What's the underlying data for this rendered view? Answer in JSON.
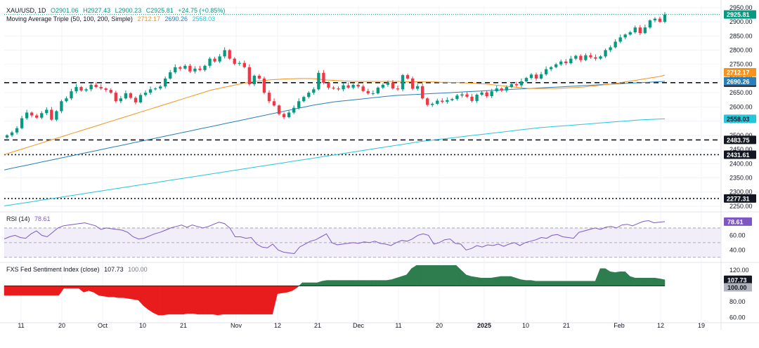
{
  "header": {
    "symbol": "XAU/USD, 1D",
    "ohlc": {
      "o": "O2901.06",
      "h": "H2927.43",
      "l": "L2900.23",
      "c": "C2925.81",
      "chg": "+24.75 (+0.85%)"
    },
    "ma_label": "Moving Average Triple (50, 100, 200, Simple)",
    "ma_values": [
      "2712.17",
      "2690.26",
      "2558.03"
    ]
  },
  "rsi_legend": {
    "label": "RSI (14)",
    "value": "78.61"
  },
  "sentiment_legend": {
    "label": "FXS Fed Sentiment Index (close)",
    "v1": "107.73",
    "v2": "100.00"
  },
  "colors": {
    "up": "#089981",
    "down": "#f23645",
    "ma50": "#f7931a",
    "ma100": "#2a7fb8",
    "ma200": "#26c6da",
    "rsi": "#7e57c2",
    "sent_pos": "#2e7d4f",
    "sent_neg": "#e81c1c"
  },
  "chart_data": [
    {
      "type": "candlestick",
      "title": "XAU/USD, 1D",
      "price_axis_ticks": [
        2950,
        2900,
        2850,
        2800,
        2750,
        2700,
        2650,
        2600,
        2550,
        2500,
        2450,
        2400,
        2350,
        2300,
        2250
      ],
      "price_axis_labels": [
        "2950.00",
        "2900.00",
        "2850.00",
        "2800.00",
        "2750.00",
        "2700.00",
        "2650.00",
        "2600.00",
        "2550.00",
        "2500.00",
        "2450.00",
        "2400.00",
        "2350.00",
        "2300.00",
        "2250.00"
      ],
      "ylim": [
        2235,
        2957
      ],
      "x_tick_labels": [
        "11",
        "20",
        "Oct",
        "10",
        "21",
        "Nov",
        "12",
        "21",
        "Dec",
        "11",
        "20",
        "2025",
        "10",
        "21",
        "Feb",
        "12",
        "19"
      ],
      "horizontal_levels": [
        {
          "value": 2685.51,
          "label": "2685.51",
          "style": "dashed"
        },
        {
          "value": 2483.75,
          "label": "2483.75",
          "style": "dashed"
        },
        {
          "value": 2431.61,
          "label": "2431.61",
          "style": "dotted"
        },
        {
          "value": 2277.31,
          "label": "2277.31",
          "style": "dotted"
        }
      ],
      "last_price": {
        "value": 2925.81,
        "label": "2925.81"
      },
      "series_labels": [
        {
          "name": "MA 50",
          "value": 2712.17,
          "label": "2712.17"
        },
        {
          "name": "MA 100",
          "value": 2690.26,
          "label": "2690.26"
        },
        {
          "name": "MA 200",
          "value": 2558.03,
          "label": "2558.03"
        }
      ],
      "candles_close": [
        2500,
        2510,
        2525,
        2560,
        2580,
        2570,
        2562,
        2578,
        2590,
        2555,
        2585,
        2620,
        2630,
        2655,
        2670,
        2658,
        2662,
        2678,
        2670,
        2665,
        2660,
        2650,
        2620,
        2630,
        2648,
        2632,
        2616,
        2642,
        2650,
        2662,
        2665,
        2672,
        2700,
        2722,
        2740,
        2735,
        2745,
        2725,
        2735,
        2730,
        2745,
        2770,
        2760,
        2778,
        2800,
        2770,
        2752,
        2755,
        2740,
        2680,
        2710,
        2700,
        2650,
        2620,
        2605,
        2575,
        2564,
        2580,
        2597,
        2620,
        2635,
        2650,
        2662,
        2720,
        2685,
        2668,
        2665,
        2662,
        2676,
        2668,
        2678,
        2672,
        2656,
        2648,
        2648,
        2668,
        2678,
        2686,
        2665,
        2662,
        2712,
        2700,
        2664,
        2673,
        2630,
        2607,
        2611,
        2622,
        2618,
        2624,
        2628,
        2640,
        2644,
        2636,
        2621,
        2643,
        2651,
        2638,
        2655,
        2665,
        2658,
        2670,
        2680,
        2676,
        2690,
        2702,
        2714,
        2700,
        2715,
        2733,
        2740,
        2750,
        2760,
        2754,
        2770,
        2780,
        2765,
        2782,
        2775,
        2770,
        2778,
        2800,
        2810,
        2830,
        2845,
        2855,
        2863,
        2880,
        2860,
        2880,
        2905,
        2911,
        2900,
        2925.81
      ],
      "ma50": [
        2432,
        2438,
        2444,
        2450,
        2456,
        2462,
        2468,
        2474,
        2480,
        2486,
        2492,
        2498,
        2504,
        2510,
        2516,
        2522,
        2528,
        2534,
        2540,
        2546,
        2552,
        2558,
        2564,
        2570,
        2576,
        2582,
        2588,
        2594,
        2600,
        2606,
        2612,
        2618,
        2624,
        2630,
        2636,
        2642,
        2648,
        2654,
        2660,
        2664,
        2668,
        2672,
        2676,
        2680,
        2684,
        2687,
        2690,
        2692,
        2694,
        2696,
        2697,
        2698,
        2699,
        2699,
        2700,
        2700,
        2700,
        2699,
        2697,
        2695,
        2694,
        2693,
        2692,
        2691,
        2690,
        2690,
        2690,
        2690,
        2690,
        2690,
        2690,
        2690,
        2690,
        2690,
        2689,
        2689,
        2689,
        2688,
        2688,
        2688,
        2687,
        2687,
        2686,
        2686,
        2685,
        2684,
        2683,
        2682,
        2681,
        2679,
        2677,
        2675,
        2673,
        2671,
        2669,
        2667,
        2665,
        2665,
        2665,
        2665,
        2665,
        2665,
        2666,
        2667,
        2668,
        2669,
        2670,
        2672,
        2674,
        2676,
        2678,
        2680,
        2683,
        2686,
        2689,
        2692,
        2695,
        2698,
        2701,
        2704,
        2707,
        2712.17
      ],
      "ma100": [
        2378,
        2382,
        2386,
        2390,
        2394,
        2398,
        2402,
        2406,
        2410,
        2414,
        2418,
        2422,
        2426,
        2430,
        2434,
        2438,
        2442,
        2446,
        2450,
        2454,
        2458,
        2462,
        2466,
        2470,
        2474,
        2478,
        2482,
        2486,
        2490,
        2494,
        2498,
        2502,
        2506,
        2510,
        2514,
        2518,
        2522,
        2526,
        2530,
        2534,
        2538,
        2542,
        2546,
        2550,
        2554,
        2558,
        2562,
        2566,
        2570,
        2574,
        2578,
        2582,
        2586,
        2590,
        2594,
        2598,
        2602,
        2606,
        2609,
        2612,
        2615,
        2618,
        2620,
        2622,
        2624,
        2626,
        2628,
        2630,
        2632,
        2634,
        2636,
        2638,
        2640,
        2641,
        2642,
        2643,
        2644,
        2645,
        2646,
        2647,
        2648,
        2649,
        2650,
        2651,
        2652,
        2653,
        2654,
        2655,
        2656,
        2657,
        2658,
        2659,
        2660,
        2661,
        2662,
        2663,
        2664,
        2665,
        2666,
        2667,
        2668,
        2669,
        2670,
        2671,
        2672,
        2673,
        2674,
        2675,
        2676,
        2677,
        2678,
        2679,
        2680,
        2681,
        2682,
        2683,
        2684,
        2685,
        2686,
        2687,
        2688,
        2689,
        2690.26
      ],
      "ma200": [
        2251,
        2255,
        2259,
        2263,
        2267,
        2271,
        2275,
        2279,
        2283,
        2287,
        2291,
        2295,
        2299,
        2303,
        2307,
        2311,
        2315,
        2319,
        2323,
        2327,
        2331,
        2335,
        2339,
        2343,
        2347,
        2351,
        2355,
        2359,
        2363,
        2367,
        2371,
        2375,
        2379,
        2383,
        2387,
        2391,
        2395,
        2399,
        2403,
        2407,
        2411,
        2415,
        2419,
        2423,
        2427,
        2431,
        2435,
        2439,
        2443,
        2447,
        2451,
        2455,
        2459,
        2463,
        2467,
        2471,
        2475,
        2479,
        2482,
        2485,
        2488,
        2491,
        2494,
        2497,
        2500,
        2503,
        2506,
        2509,
        2512,
        2515,
        2518,
        2521,
        2524,
        2527,
        2529,
        2531,
        2533,
        2535,
        2537,
        2539,
        2541,
        2543,
        2545,
        2547,
        2549,
        2551,
        2553,
        2555,
        2556,
        2557,
        2558.03
      ]
    },
    {
      "type": "line",
      "title": "RSI (14)",
      "ylim": [
        25,
        90
      ],
      "tick_labels": [
        "60.00",
        "40.00"
      ],
      "ticks": [
        60,
        40
      ],
      "bands": [
        70,
        50,
        30
      ],
      "last": {
        "value": 78.61,
        "label": "78.61"
      },
      "values": [
        55,
        58,
        60,
        57,
        56,
        62,
        66,
        60,
        58,
        64,
        70,
        73,
        74,
        75,
        76,
        77,
        75,
        73,
        68,
        70,
        69,
        68,
        67,
        64,
        58,
        55,
        56,
        59,
        62,
        64,
        67,
        70,
        72,
        74,
        71,
        74,
        72,
        70,
        72,
        75,
        78,
        76,
        70,
        58,
        58,
        56,
        57,
        48,
        44,
        43,
        48,
        40,
        37,
        36,
        35,
        44,
        48,
        52,
        54,
        58,
        62,
        50,
        47,
        48,
        49,
        50,
        49,
        51,
        50,
        52,
        49,
        48,
        46,
        50,
        53,
        52,
        55,
        60,
        62,
        60,
        48,
        50,
        54,
        55,
        49,
        48,
        40,
        42,
        46,
        44,
        47,
        46,
        48,
        45,
        48,
        50,
        46,
        50,
        52,
        54,
        57,
        56,
        60,
        61,
        58,
        57,
        56,
        64,
        66,
        68,
        70,
        68,
        71,
        72,
        70,
        74,
        75,
        73,
        76,
        79,
        80,
        77,
        78,
        78.61
      ]
    },
    {
      "type": "area",
      "title": "FXS Fed Sentiment Index (close)",
      "ylim": [
        55,
        128
      ],
      "tick_labels": [
        "120.00",
        "80.00",
        "60.00"
      ],
      "ticks": [
        120,
        80,
        60
      ],
      "baseline": 100,
      "last": [
        {
          "value": 107.73,
          "label": "107.73"
        },
        {
          "value": 100.0,
          "label": "100.00"
        }
      ],
      "values": [
        88,
        88,
        88,
        88,
        88,
        88,
        88,
        88,
        88,
        88,
        88,
        88,
        97,
        97,
        97,
        97,
        92,
        94,
        92,
        88,
        87,
        86,
        86,
        85,
        85,
        84,
        83,
        82,
        75,
        70,
        66,
        63,
        63,
        64,
        64,
        64,
        64,
        65,
        65,
        64,
        64,
        64,
        64,
        63,
        64,
        64,
        64,
        64,
        64,
        64,
        64,
        64,
        64,
        64,
        64,
        90,
        91,
        92,
        94,
        98,
        104,
        104,
        104,
        104,
        106,
        107,
        107,
        107,
        107,
        107,
        107,
        107,
        107,
        107,
        107,
        107,
        107,
        107,
        108,
        110,
        112,
        114,
        122,
        126,
        126,
        126,
        126,
        126,
        126,
        126,
        126,
        126,
        120,
        114,
        112,
        111,
        110,
        110,
        110,
        111,
        112,
        112,
        112,
        110,
        108,
        107,
        107,
        106,
        106,
        106,
        106,
        106,
        106,
        106,
        106,
        106,
        106,
        106,
        106,
        106,
        122,
        122,
        118,
        117,
        118,
        118,
        112,
        110,
        110,
        110,
        110,
        110,
        109,
        107.73
      ]
    }
  ]
}
